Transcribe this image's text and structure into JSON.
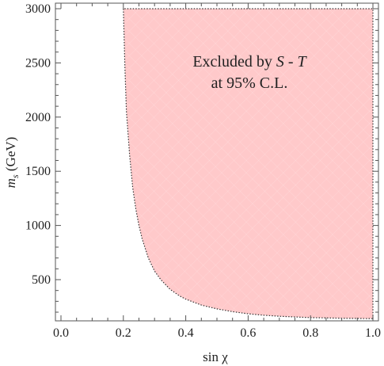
{
  "chart_data": {
    "type": "area",
    "xlabel": "sin χ",
    "ylabel_main": "m",
    "ylabel_sub": "s",
    "ylabel_units": " (GeV)",
    "xlim": [
      0.0,
      1.0
    ],
    "ylim": [
      100,
      3000
    ],
    "x_ticks": [
      0.0,
      0.2,
      0.4,
      0.6,
      0.8,
      1.0
    ],
    "x_tick_labels": [
      "0.0",
      "0.2",
      "0.4",
      "0.6",
      "0.8",
      "1.0"
    ],
    "y_ticks": [
      500,
      1000,
      1500,
      2000,
      2500,
      3000
    ],
    "y_tick_labels": [
      "500",
      "1000",
      "1500",
      "2000",
      "2500",
      "3000"
    ],
    "region": {
      "fill_color": "#ffc9ca",
      "boundary_color": "#333333",
      "boundary": {
        "x": [
          0.2,
          0.205,
          0.21,
          0.22,
          0.23,
          0.24,
          0.25,
          0.26,
          0.28,
          0.3,
          0.32,
          0.35,
          0.38,
          0.4,
          0.45,
          0.5,
          0.55,
          0.6,
          0.65,
          0.7,
          0.8,
          0.9,
          1.0
        ],
        "y": [
          3000,
          2450,
          2050,
          1650,
          1350,
          1150,
          1000,
          880,
          700,
          580,
          500,
          410,
          350,
          320,
          265,
          230,
          205,
          185,
          172,
          162,
          150,
          144,
          140
        ]
      }
    },
    "annotation_line1": "Excluded by ",
    "annotation_S": "S",
    "annotation_dash": " - ",
    "annotation_T": "T",
    "annotation_line2": "at 95% C.L."
  }
}
